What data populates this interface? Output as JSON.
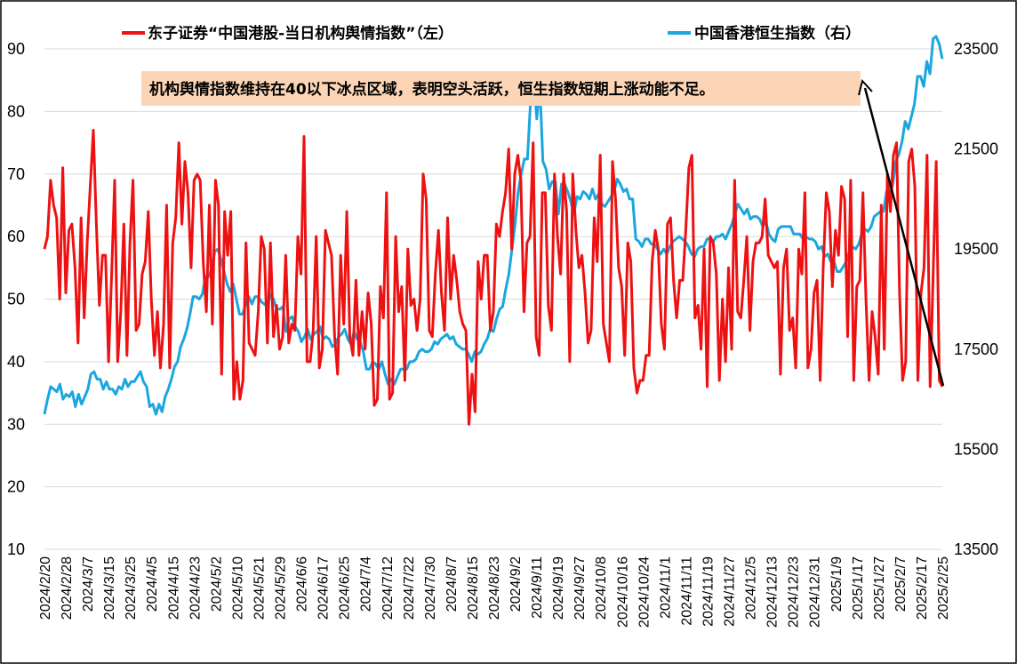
{
  "chart_data": {
    "type": "line",
    "legend": [
      {
        "label": "东子证券“中国港股-当日机构舆情指数”（左）",
        "color": "#ee1111"
      },
      {
        "label": "中国香港恒生指数（右）",
        "color": "#1aa6df"
      }
    ],
    "annotation": "机构舆情指数维持在40以下冰点区域，表明空头活跃，恒生指数短期上涨动能不足。",
    "y_left": {
      "min": 10,
      "max": 90,
      "ticks": [
        "10",
        "20",
        "30",
        "40",
        "50",
        "60",
        "70",
        "80",
        "90"
      ]
    },
    "y_right": {
      "min": 13500,
      "max": 23500,
      "ticks": [
        "13500",
        "15500",
        "17500",
        "19500",
        "21500",
        "23500"
      ]
    },
    "x_ticks": [
      "2024/2/20",
      "2024/2/28",
      "2024/3/7",
      "2024/3/15",
      "2024/3/25",
      "2024/4/5",
      "2024/4/15",
      "2024/4/23",
      "2024/5/2",
      "2024/5/10",
      "2024/5/21",
      "2024/5/29",
      "2024/6/6",
      "2024/6/17",
      "2024/6/25",
      "2024/7/4",
      "2024/7/12",
      "2024/7/22",
      "2024/7/30",
      "2024/8/7",
      "2024/8/15",
      "2024/8/23",
      "2024/9/2",
      "2024/9/11",
      "2024/9/19",
      "2024/9/27",
      "2024/10/8",
      "2024/10/16",
      "2024/10/24",
      "2024/11/1",
      "2024/11/11",
      "2024/11/19",
      "2024/11/27",
      "2024/12/5",
      "2024/12/13",
      "2024/12/23",
      "2024/12/31",
      "2025/1/9",
      "2025/1/17",
      "2025/1/27",
      "2025/2/7",
      "2025/2/17",
      "2025/2/25"
    ],
    "series": [
      {
        "name": "东子证券“中国港股-当日机构舆情指数”（左）",
        "axis": "left",
        "values": [
          58,
          60,
          69,
          65,
          63,
          50,
          71,
          51,
          61,
          62,
          55,
          43,
          63,
          47,
          59,
          68,
          77,
          62,
          49,
          57,
          57,
          40,
          54,
          69,
          40,
          48,
          62,
          41,
          59,
          69,
          45,
          46,
          54,
          56,
          64,
          50,
          41,
          48,
          39,
          46,
          65,
          39,
          59,
          63,
          75,
          62,
          72,
          67,
          55,
          69,
          70,
          69,
          56,
          48,
          65,
          46,
          69,
          65,
          38,
          64,
          57,
          64,
          34,
          40,
          34,
          37,
          59,
          43,
          42,
          41,
          48,
          60,
          58,
          43,
          59,
          44,
          49,
          42,
          44,
          57,
          43,
          46,
          45,
          60,
          54,
          76,
          40,
          40,
          45,
          60,
          39,
          42,
          61,
          59,
          57,
          44,
          38,
          57,
          46,
          64,
          44,
          41,
          53,
          41,
          48,
          42,
          51,
          46,
          33,
          34,
          52,
          47,
          67,
          34,
          35,
          60,
          48,
          52,
          37,
          58,
          49,
          50,
          45,
          50,
          70,
          66,
          45,
          44,
          54,
          61,
          51,
          45,
          63,
          50,
          57,
          53,
          48,
          46,
          45,
          30,
          38,
          32,
          56,
          50,
          57,
          57,
          45,
          48,
          62,
          60,
          64,
          67,
          74,
          58,
          70,
          73,
          69,
          48,
          59,
          60,
          75,
          44,
          41,
          67,
          67,
          49,
          45,
          70,
          60,
          54,
          70,
          64,
          40,
          70,
          61,
          55,
          57,
          51,
          43,
          45,
          63,
          56,
          73,
          46,
          43,
          40,
          72,
          66,
          55,
          52,
          41,
          59,
          56,
          39,
          35,
          37,
          37,
          41,
          41,
          56,
          61,
          58,
          46,
          42,
          62,
          63,
          53,
          47,
          53,
          53,
          61,
          71,
          73,
          47,
          49,
          42,
          58,
          36,
          60,
          59,
          54,
          37,
          50,
          40,
          55,
          42,
          69,
          48,
          47,
          53,
          60,
          45,
          56,
          59,
          59,
          60,
          66,
          57,
          56,
          55,
          56,
          38,
          55,
          58,
          45,
          47,
          39,
          58,
          54,
          67,
          39,
          42,
          51,
          53,
          37,
          55,
          67,
          64,
          52,
          61,
          57,
          68,
          66,
          44,
          69,
          37,
          52,
          53,
          67,
          50,
          37,
          48,
          44,
          38,
          65,
          42,
          70,
          64,
          73,
          75,
          51,
          37,
          40,
          72,
          74,
          68,
          37,
          51,
          55,
          73,
          36,
          54,
          72,
          37,
          36
        ]
      },
      {
        "name": "中国香港恒生指数（右）",
        "axis": "right",
        "values": [
          16200,
          16500,
          16750,
          16700,
          16650,
          16800,
          16500,
          16600,
          16550,
          16650,
          16350,
          16600,
          16400,
          16550,
          16700,
          17000,
          17050,
          16900,
          16900,
          16700,
          16850,
          16700,
          16700,
          16600,
          16750,
          16700,
          16900,
          16750,
          16850,
          16850,
          16950,
          17050,
          16850,
          16750,
          16350,
          16400,
          16200,
          16400,
          16250,
          16550,
          16700,
          16900,
          17150,
          17250,
          17550,
          17700,
          17900,
          18200,
          18550,
          18550,
          18500,
          18600,
          18950,
          18950,
          19100,
          19450,
          19500,
          19300,
          19050,
          18800,
          18650,
          18800,
          18500,
          18200,
          18200,
          18400,
          18550,
          18400,
          18550,
          18550,
          18450,
          18400,
          18350,
          18600,
          18500,
          18300,
          18300,
          18350,
          17850,
          18100,
          18150,
          17950,
          17850,
          17650,
          17750,
          17900,
          17700,
          17800,
          17850,
          17950,
          17700,
          17750,
          17700,
          17550,
          17600,
          17750,
          17800,
          17900,
          17700,
          17600,
          17850,
          17700,
          17650,
          17450,
          17100,
          17100,
          17250,
          17200,
          17100,
          17250,
          17000,
          16800,
          16900,
          16800,
          16950,
          17100,
          17100,
          17100,
          17250,
          17250,
          17300,
          17450,
          17500,
          17450,
          17450,
          17500,
          17650,
          17600,
          17700,
          17750,
          17800,
          17700,
          17750,
          17600,
          17550,
          17500,
          17500,
          17400,
          17250,
          17450,
          17400,
          17450,
          17600,
          17700,
          17900,
          17850,
          18100,
          18300,
          18350,
          18700,
          19000,
          19500,
          20000,
          20650,
          21000,
          21300,
          21300,
          22450,
          23000,
          22100,
          22800,
          21250,
          21100,
          20700,
          20850,
          20850,
          20200,
          20800,
          20800,
          20650,
          20450,
          20200,
          20550,
          20500,
          20650,
          20600,
          20500,
          20700,
          20500,
          20600,
          20400,
          20350,
          20450,
          20550,
          20650,
          20900,
          20800,
          20650,
          20700,
          20500,
          20500,
          19700,
          19650,
          19550,
          19700,
          19700,
          19600,
          19600,
          19500,
          19400,
          19500,
          19400,
          19550,
          19650,
          19700,
          19750,
          19700,
          19650,
          19550,
          19400,
          19350,
          19500,
          19550,
          19550,
          19700,
          19700,
          19650,
          19750,
          19750,
          19800,
          19700,
          19850,
          20000,
          20200,
          20400,
          20300,
          20200,
          20300,
          20100,
          20150,
          20150,
          20100,
          19950,
          20050,
          19800,
          19700,
          19650,
          19900,
          19950,
          19950,
          19950,
          19950,
          19800,
          19800,
          19800,
          19700,
          19750,
          19700,
          19700,
          19650,
          19500,
          19550,
          19350,
          19400,
          19250,
          19250,
          19050,
          19050,
          19150,
          19250,
          19450,
          19550,
          19500,
          19600,
          19800,
          19900,
          19850,
          19950,
          20150,
          20200,
          20250,
          20250,
          20650,
          20550,
          20800,
          21250,
          21400,
          21650,
          22050,
          21900,
          22150,
          22400,
          22950,
          22950,
          22750,
          23250,
          23000,
          23700,
          23750,
          23600,
          23300
        ]
      }
    ]
  }
}
